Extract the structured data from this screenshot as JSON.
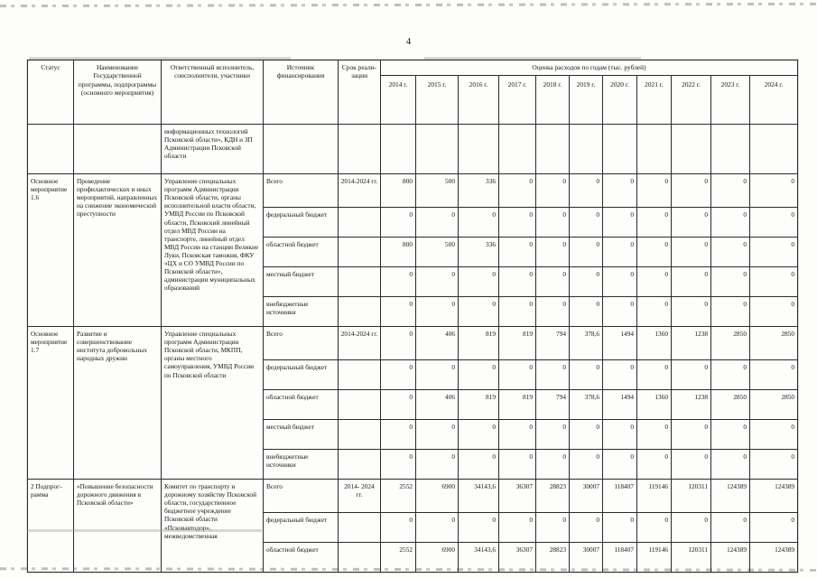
{
  "page": {
    "number": "4"
  },
  "table": {
    "headers": {
      "status": "Статус",
      "name": "Наименование Государственной программы, подпрограммы (основного мероприятия)",
      "executor": "Ответственный исполнитель, соисполнители, участники",
      "source": "Источник финансирования",
      "term": "Срок реали-зации",
      "estimate": "Оценка расходов по годам (тыс. рублей)",
      "years": [
        "2014 г.",
        "2015 г.",
        "2016 г.",
        "2017 г.",
        "2018 г.",
        "2019 г.",
        "2020 г.",
        "2021 г.",
        "2022 г.",
        "2023 г.",
        "2024 г."
      ]
    },
    "continuation_row": {
      "executor": "информационных технологий Псковской области», КДН и ЗП Администрации Псковской области"
    },
    "blocks": [
      {
        "status": "Основное мероприятие 1.6",
        "name": "Проведение профилактических и иных мероприятий, направленных на снижение экономической преступности",
        "executor": "Управление специальных программ Администрации Псковской области, органы исполнительной власти области, УМВД России по Псковской области, Псковский линейный отдел МВД России на транспорте, линейный отдел МВД России на станции Великие Луки, Псковская таможня, ФКУ «ЦХ и СО УМВД России по Псковской области», администрации муниципальных образований",
        "term": "2014-2024 гг.",
        "rows": [
          {
            "source": "Всего",
            "values": [
              "800",
              "500",
              "336",
              "0",
              "0",
              "0",
              "0",
              "0",
              "0",
              "0",
              "0"
            ]
          },
          {
            "source": "федеральный бюджет",
            "values": [
              "0",
              "0",
              "0",
              "0",
              "0",
              "0",
              "0",
              "0",
              "0",
              "0",
              "0"
            ]
          },
          {
            "source": "областной бюджет",
            "values": [
              "800",
              "500",
              "336",
              "0",
              "0",
              "0",
              "0",
              "0",
              "0",
              "0",
              "0"
            ]
          },
          {
            "source": "местный бюджет",
            "values": [
              "0",
              "0",
              "0",
              "0",
              "0",
              "0",
              "0",
              "0",
              "0",
              "0",
              "0"
            ]
          },
          {
            "source": "внебюджетные источники",
            "values": [
              "0",
              "0",
              "0",
              "0",
              "0",
              "0",
              "0",
              "0",
              "0",
              "0",
              "0"
            ]
          }
        ]
      },
      {
        "status": "Основное мероприятие 1.7",
        "name": "Развитие и совершенствование института добровольных народных дружин",
        "executor": "Управление специальных программ Администрации Псковской области, МКПП, органы местного самоуправления, УМВД России по Псковской области",
        "term": "2014-2024 гг.",
        "rows": [
          {
            "source": "Всего",
            "values": [
              "0",
              "406",
              "819",
              "819",
              "794",
              "378,6",
              "1494",
              "1360",
              "1238",
              "2850",
              "2850"
            ]
          },
          {
            "source": "федеральный бюджет",
            "values": [
              "0",
              "0",
              "0",
              "0",
              "0",
              "0",
              "0",
              "0",
              "0",
              "0",
              "0"
            ]
          },
          {
            "source": "областной бюджет",
            "values": [
              "0",
              "406",
              "819",
              "819",
              "794",
              "378,6",
              "1494",
              "1360",
              "1238",
              "2850",
              "2850"
            ]
          },
          {
            "source": "местный бюджет",
            "values": [
              "0",
              "0",
              "0",
              "0",
              "0",
              "0",
              "0",
              "0",
              "0",
              "0",
              "0"
            ]
          },
          {
            "source": "внебюджетные источники",
            "values": [
              "0",
              "0",
              "0",
              "0",
              "0",
              "0",
              "0",
              "0",
              "0",
              "0",
              "0"
            ]
          }
        ]
      },
      {
        "status": "2 Подпрог-рамма",
        "name": "«Повышение безопасности дорожного движения в Псковской области»",
        "executor": "Комитет по транспорту и дорожному хозяйству Псковской области, государственное бюджетное учреждение Псковской области «Псковавтодор», межведомственная",
        "term": "2014- 2024 гг.",
        "rows": [
          {
            "source": "Всего",
            "values": [
              "2552",
              "6900",
              "34143,6",
              "36307",
              "28823",
              "30007",
              "118407",
              "119146",
              "120311",
              "124389",
              "124389"
            ]
          },
          {
            "source": "федеральный бюджет",
            "values": [
              "0",
              "0",
              "0",
              "0",
              "0",
              "0",
              "0",
              "0",
              "0",
              "0",
              "0"
            ]
          },
          {
            "source": "областной бюджет",
            "values": [
              "2552",
              "6900",
              "34143,6",
              "36307",
              "28823",
              "30007",
              "118407",
              "119146",
              "120311",
              "124389",
              "124389"
            ]
          }
        ]
      }
    ]
  }
}
